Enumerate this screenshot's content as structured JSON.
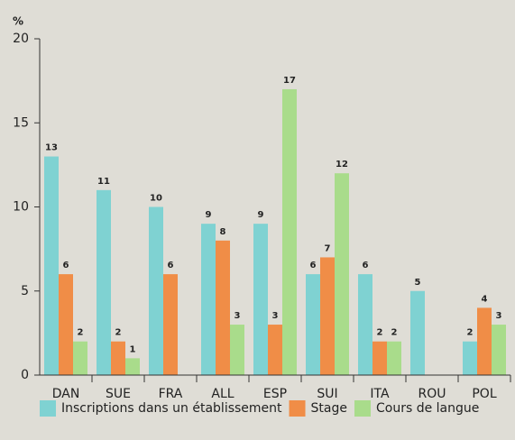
{
  "chart_data": {
    "type": "bar",
    "y_label": "%",
    "categories": [
      "DAN",
      "SUE",
      "FRA",
      "ALL",
      "ESP",
      "SUI",
      "ITA",
      "ROU",
      "POL"
    ],
    "series": [
      {
        "name": "Inscriptions dans un établissement",
        "color": "#7fd2d2",
        "values": [
          13,
          11,
          10,
          9,
          9,
          6,
          6,
          5,
          2
        ]
      },
      {
        "name": "Stage",
        "color": "#f08d47",
        "values": [
          6,
          2,
          6,
          8,
          3,
          7,
          2,
          null,
          4
        ]
      },
      {
        "name": "Cours de langue",
        "color": "#a9dc8b",
        "values": [
          2,
          1,
          null,
          3,
          17,
          12,
          2,
          null,
          3
        ]
      }
    ],
    "ylim": [
      0,
      20
    ],
    "yticks": [
      0,
      5,
      10,
      15,
      20
    ],
    "legend": "bottom",
    "data_labels": true
  }
}
